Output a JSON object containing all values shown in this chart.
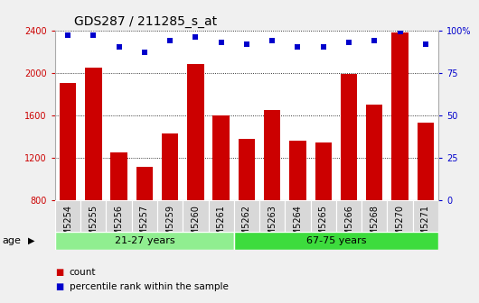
{
  "title": "GDS287 / 211285_s_at",
  "categories": [
    "GSM5254",
    "GSM5255",
    "GSM5256",
    "GSM5257",
    "GSM5259",
    "GSM5260",
    "GSM5261",
    "GSM5262",
    "GSM5263",
    "GSM5264",
    "GSM5265",
    "GSM5266",
    "GSM5268",
    "GSM5270",
    "GSM5271"
  ],
  "bar_values": [
    1900,
    2050,
    1250,
    1110,
    1430,
    2080,
    1600,
    1380,
    1650,
    1360,
    1340,
    1990,
    1700,
    2380,
    1530
  ],
  "percentile_values": [
    97,
    97,
    90,
    87,
    94,
    96,
    93,
    92,
    94,
    90,
    90,
    93,
    94,
    99,
    92
  ],
  "bar_color": "#cc0000",
  "dot_color": "#0000cc",
  "ylim": [
    800,
    2400
  ],
  "y2lim": [
    0,
    100
  ],
  "yticks": [
    800,
    1200,
    1600,
    2000,
    2400
  ],
  "y2ticks": [
    0,
    25,
    50,
    75,
    100
  ],
  "y2ticklabels": [
    "0",
    "25",
    "50",
    "75",
    "100%"
  ],
  "groups": [
    {
      "label": "21-27 years",
      "start": 0,
      "end": 7,
      "color": "#90ee90"
    },
    {
      "label": "67-75 years",
      "start": 7,
      "end": 15,
      "color": "#3ddc3d"
    }
  ],
  "age_label": "age",
  "legend_bar_label": "count",
  "legend_dot_label": "percentile rank within the sample",
  "background_color": "#f0f0f0",
  "plot_bg_color": "#ffffff",
  "title_fontsize": 10,
  "tick_fontsize": 7,
  "label_fontsize": 8,
  "group_n_total": 15,
  "group_split": 7
}
